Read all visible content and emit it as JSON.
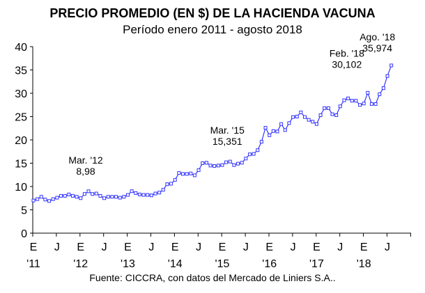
{
  "chart_data": {
    "type": "line",
    "title": "PRECIO PROMEDIO (EN $) DE LA HACIENDA VACUNA",
    "subtitle": "Período enero 2011 - agosto 2018",
    "source": "Fuente: CICCRA, con datos del Mercado de Liniers S.A..",
    "xlabel": "",
    "ylabel": "",
    "ylim": [
      0,
      40
    ],
    "yticks": [
      "0",
      "5",
      "10",
      "15",
      "20",
      "25",
      "30",
      "35",
      "40"
    ],
    "month_ticks": [
      "E",
      "J",
      "E",
      "J",
      "E",
      "J",
      "E",
      "J",
      "E",
      "J",
      "E",
      "J",
      "E",
      "J",
      "E",
      "J"
    ],
    "year_ticks": [
      "'11",
      "'12",
      "'13",
      "'14",
      "'15",
      "'16",
      "'17",
      "'18"
    ],
    "start": "2011-01",
    "series": [
      {
        "name": "Precio promedio",
        "color": "#3333ff",
        "values": [
          7.0,
          7.3,
          7.8,
          7.2,
          6.9,
          7.3,
          7.6,
          8.0,
          8.0,
          8.3,
          8.0,
          7.8,
          7.5,
          8.4,
          8.98,
          8.4,
          8.5,
          8.0,
          7.5,
          7.8,
          7.8,
          7.8,
          7.6,
          7.8,
          8.2,
          9.0,
          8.6,
          8.3,
          8.2,
          8.2,
          8.1,
          8.5,
          8.7,
          9.3,
          10.5,
          10.6,
          11.4,
          12.9,
          12.7,
          12.7,
          12.8,
          12.4,
          13.5,
          15.0,
          15.1,
          14.5,
          14.4,
          14.5,
          14.6,
          15.2,
          15.351,
          14.6,
          14.9,
          15.1,
          16.0,
          16.9,
          17.0,
          17.8,
          19.6,
          22.6,
          21.0,
          21.9,
          21.8,
          23.4,
          22.1,
          23.6,
          24.9,
          25.0,
          25.9,
          24.9,
          24.3,
          23.9,
          23.4,
          25.3,
          26.8,
          26.8,
          25.5,
          25.3,
          27.2,
          28.5,
          28.9,
          28.4,
          28.4,
          27.5,
          27.8,
          30.102,
          27.7,
          27.7,
          29.8,
          31.1,
          33.7,
          35.974
        ]
      }
    ],
    "annotations": [
      {
        "label": "Mar. '12",
        "value_text": "8,98",
        "index": 14
      },
      {
        "label": "Mar. '15",
        "value_text": "15,351",
        "index": 50
      },
      {
        "label": "Feb. '18",
        "value_text": "30,102",
        "index": 85
      },
      {
        "label": "Ago. '18",
        "value_text": "35,974",
        "index": 91
      }
    ]
  }
}
